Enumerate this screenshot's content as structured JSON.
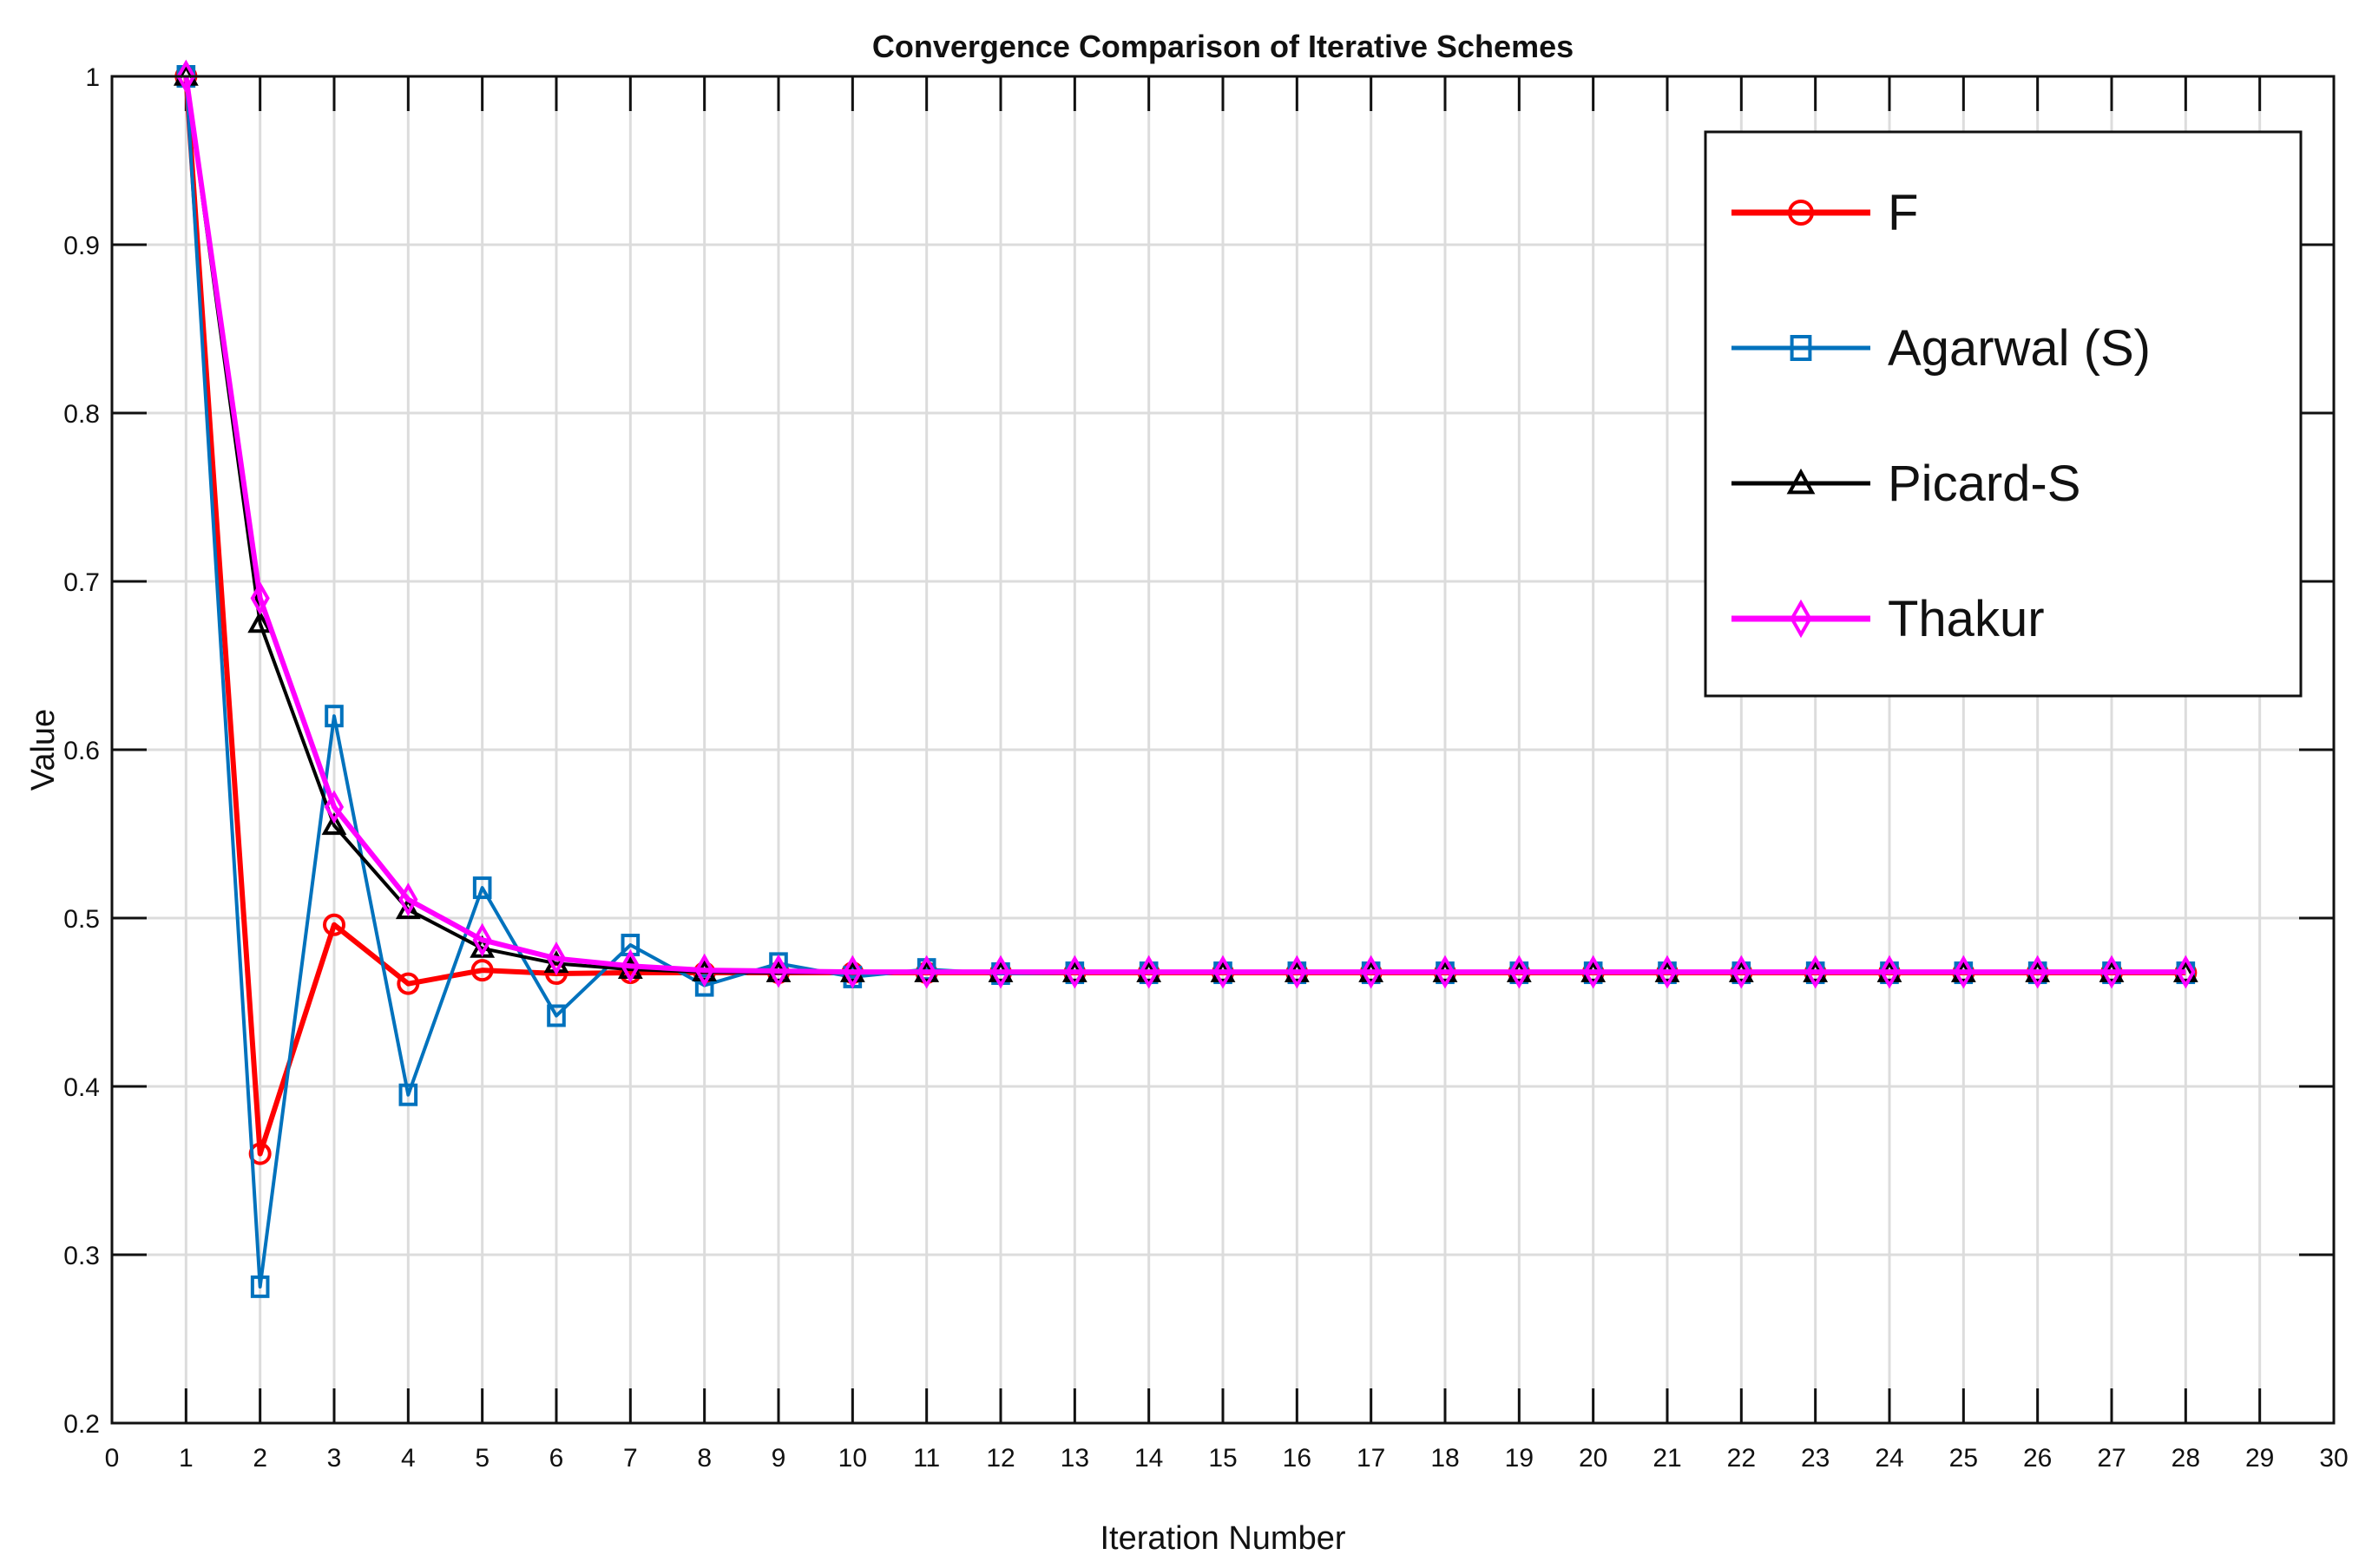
{
  "chart_data": {
    "type": "line",
    "title": "Convergence Comparison of Iterative Schemes",
    "xlabel": "Iteration Number",
    "ylabel": "Value",
    "xlim": [
      0,
      30
    ],
    "ylim": [
      0.2,
      1
    ],
    "x_ticks": [
      "0",
      "1",
      "2",
      "3",
      "4",
      "5",
      "6",
      "7",
      "8",
      "9",
      "10",
      "11",
      "12",
      "13",
      "14",
      "15",
      "16",
      "17",
      "18",
      "19",
      "20",
      "21",
      "22",
      "23",
      "24",
      "25",
      "26",
      "27",
      "28",
      "29",
      "30"
    ],
    "y_ticks": [
      "0.2",
      "0.3",
      "0.4",
      "0.5",
      "0.6",
      "0.7",
      "0.8",
      "0.9",
      "1"
    ],
    "grid": true,
    "legend_position": "top-right",
    "x": [
      1,
      2,
      3,
      4,
      5,
      6,
      7,
      8,
      9,
      10,
      11,
      12,
      13,
      14,
      15,
      16,
      17,
      18,
      19,
      20,
      21,
      22,
      23,
      24,
      25,
      26,
      27,
      28
    ],
    "series": [
      {
        "name": "F",
        "color": "#ff0000",
        "marker": "circle",
        "values": [
          1.0,
          0.36,
          0.496,
          0.461,
          0.469,
          0.467,
          0.4675,
          0.4675,
          0.4675,
          0.4675,
          0.4675,
          0.4675,
          0.4675,
          0.4675,
          0.4675,
          0.4675,
          0.4675,
          0.4675,
          0.4675,
          0.4675,
          0.4675,
          0.4675,
          0.4675,
          0.4675,
          0.4675,
          0.4675,
          0.4675,
          0.4675
        ]
      },
      {
        "name": "Agarwal (S)",
        "color": "#0072bd",
        "marker": "square",
        "values": [
          1.0,
          0.281,
          0.62,
          0.395,
          0.518,
          0.442,
          0.484,
          0.46,
          0.473,
          0.465,
          0.4695,
          0.467,
          0.4675,
          0.4675,
          0.4675,
          0.4675,
          0.4675,
          0.4675,
          0.4675,
          0.4675,
          0.4675,
          0.4675,
          0.4675,
          0.4675,
          0.4675,
          0.4675,
          0.4675,
          0.4675
        ]
      },
      {
        "name": "Picard-S",
        "color": "#000000",
        "marker": "triangle",
        "values": [
          1.0,
          0.675,
          0.555,
          0.505,
          0.482,
          0.473,
          0.4695,
          0.468,
          0.4675,
          0.4675,
          0.4675,
          0.4675,
          0.4675,
          0.4675,
          0.4675,
          0.4675,
          0.4675,
          0.4675,
          0.4675,
          0.4675,
          0.4675,
          0.4675,
          0.4675,
          0.4675,
          0.4675,
          0.4675,
          0.4675,
          0.4675
        ]
      },
      {
        "name": "Thakur",
        "color": "#ff00ff",
        "marker": "diamond",
        "values": [
          1.0,
          0.69,
          0.566,
          0.511,
          0.487,
          0.476,
          0.4715,
          0.469,
          0.4685,
          0.468,
          0.468,
          0.468,
          0.468,
          0.468,
          0.468,
          0.468,
          0.468,
          0.468,
          0.468,
          0.468,
          0.468,
          0.468,
          0.468,
          0.468,
          0.468,
          0.468,
          0.468,
          0.468
        ]
      }
    ]
  }
}
